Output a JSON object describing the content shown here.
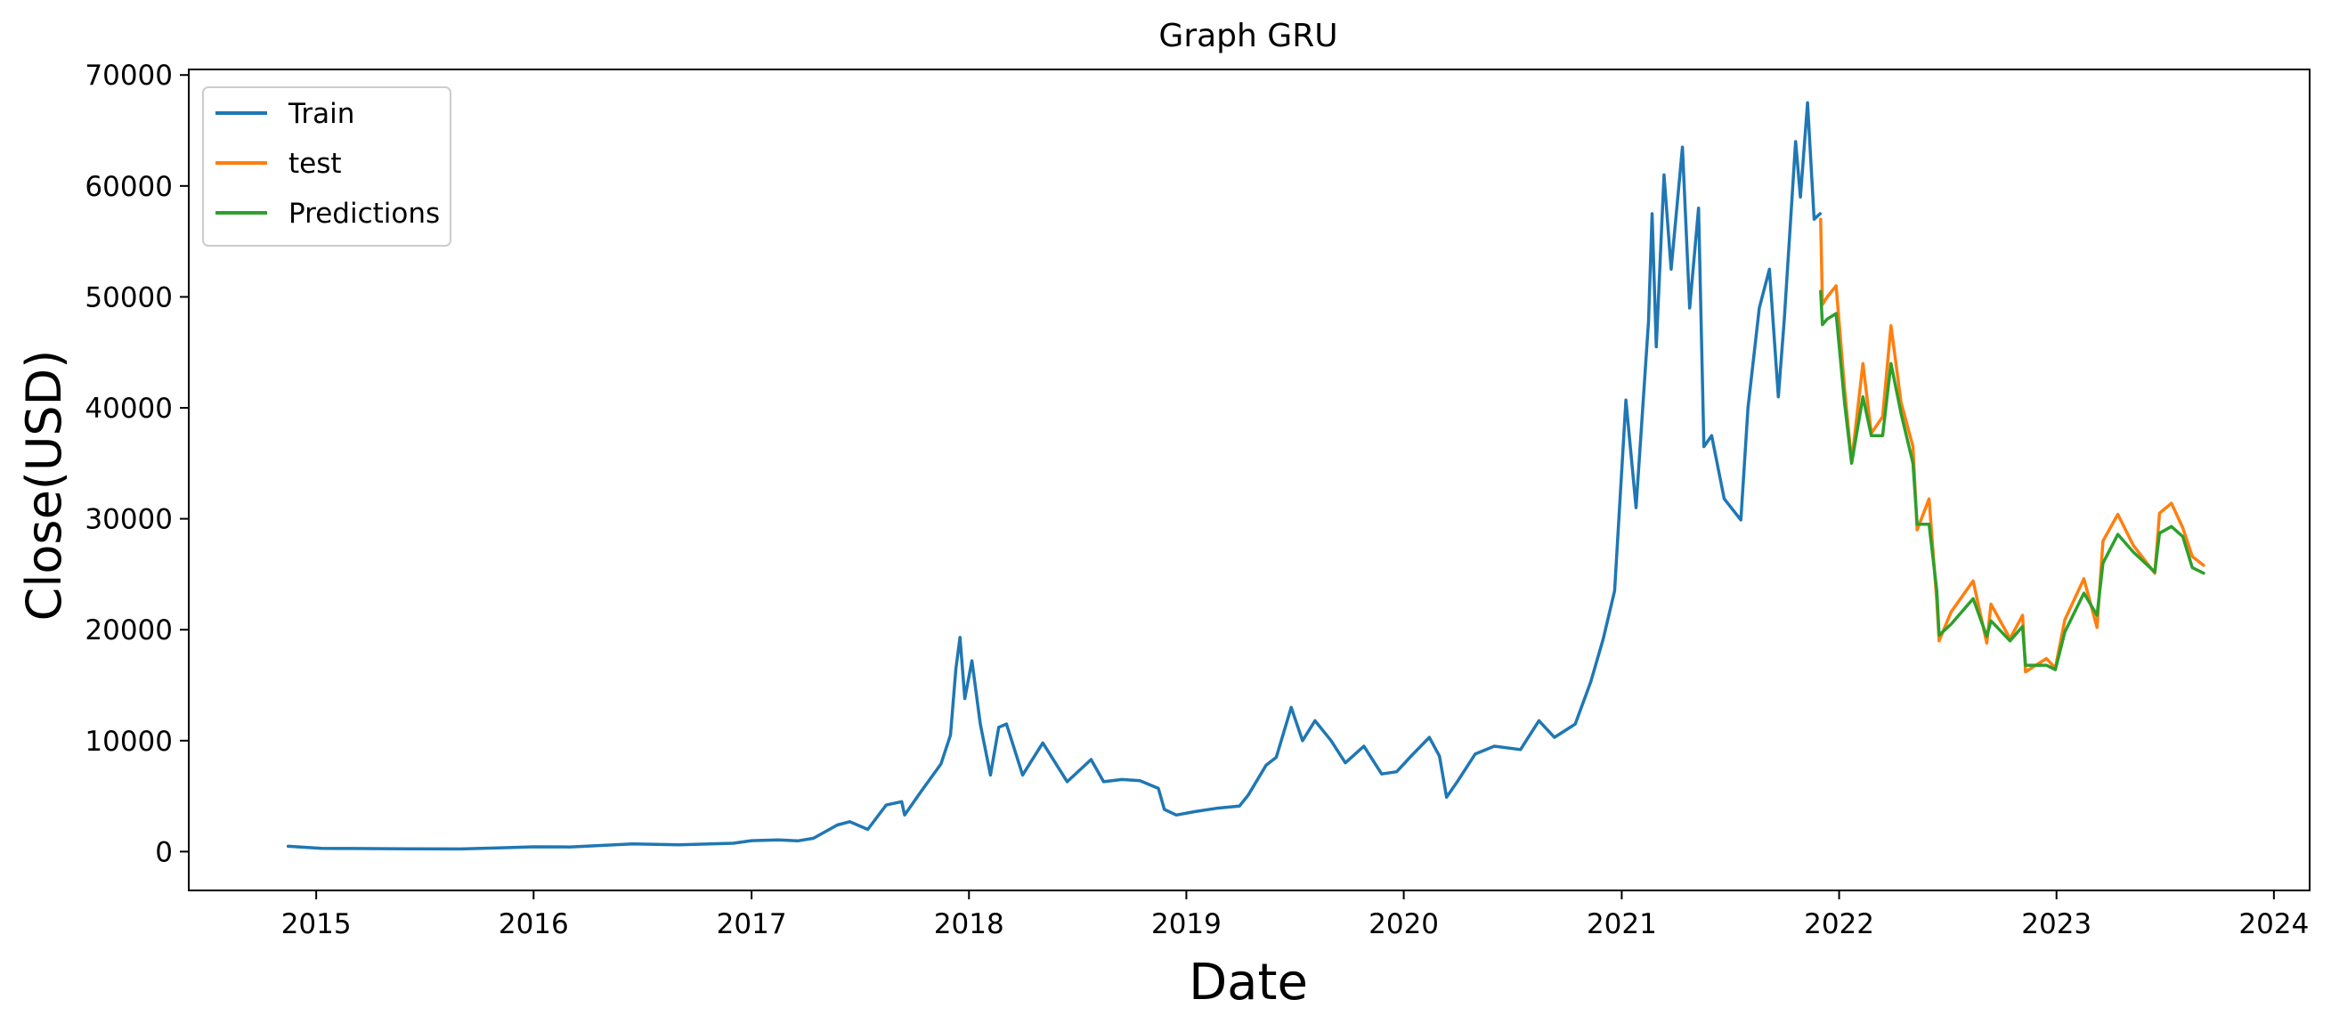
{
  "chart_data": {
    "type": "line",
    "title": "Graph GRU",
    "xlabel": "Date",
    "ylabel": "Close(USD)",
    "xlim": [
      "2014-06-01",
      "2024-03-01"
    ],
    "ylim": [
      -3500,
      70500
    ],
    "x_ticks": [
      "2015",
      "2016",
      "2017",
      "2018",
      "2019",
      "2020",
      "2021",
      "2022",
      "2023",
      "2024"
    ],
    "y_ticks": [
      0,
      10000,
      20000,
      30000,
      40000,
      50000,
      60000,
      70000
    ],
    "y_tick_labels": [
      "0",
      "10000",
      "20000",
      "30000",
      "40000",
      "50000",
      "60000",
      "70000"
    ],
    "grid": false,
    "legend_position": "top-left",
    "series": [
      {
        "name": "Train",
        "color": "#1f77b4",
        "points": [
          [
            "2014-11-15",
            480
          ],
          [
            "2015-01-10",
            290
          ],
          [
            "2015-03-01",
            280
          ],
          [
            "2015-06-01",
            250
          ],
          [
            "2015-09-01",
            240
          ],
          [
            "2015-11-15",
            350
          ],
          [
            "2016-01-01",
            430
          ],
          [
            "2016-03-01",
            415
          ],
          [
            "2016-06-15",
            700
          ],
          [
            "2016-09-01",
            610
          ],
          [
            "2016-12-01",
            750
          ],
          [
            "2017-01-01",
            990
          ],
          [
            "2017-02-15",
            1050
          ],
          [
            "2017-03-20",
            970
          ],
          [
            "2017-04-15",
            1200
          ],
          [
            "2017-05-25",
            2400
          ],
          [
            "2017-06-15",
            2700
          ],
          [
            "2017-07-15",
            2000
          ],
          [
            "2017-08-15",
            4200
          ],
          [
            "2017-09-10",
            4500
          ],
          [
            "2017-09-15",
            3300
          ],
          [
            "2017-10-15",
            5600
          ],
          [
            "2017-11-15",
            7900
          ],
          [
            "2017-12-01",
            10500
          ],
          [
            "2017-12-10",
            16500
          ],
          [
            "2017-12-17",
            19300
          ],
          [
            "2017-12-25",
            13800
          ],
          [
            "2018-01-06",
            17200
          ],
          [
            "2018-01-20",
            11500
          ],
          [
            "2018-02-06",
            6900
          ],
          [
            "2018-02-20",
            11200
          ],
          [
            "2018-03-05",
            11500
          ],
          [
            "2018-04-01",
            6900
          ],
          [
            "2018-05-05",
            9800
          ],
          [
            "2018-06-15",
            6300
          ],
          [
            "2018-07-25",
            8300
          ],
          [
            "2018-08-15",
            6300
          ],
          [
            "2018-09-15",
            6500
          ],
          [
            "2018-10-15",
            6400
          ],
          [
            "2018-11-15",
            5700
          ],
          [
            "2018-11-25",
            3800
          ],
          [
            "2018-12-15",
            3300
          ],
          [
            "2019-01-15",
            3600
          ],
          [
            "2019-02-20",
            3900
          ],
          [
            "2019-03-31",
            4100
          ],
          [
            "2019-04-15",
            5100
          ],
          [
            "2019-05-15",
            7800
          ],
          [
            "2019-06-01",
            8500
          ],
          [
            "2019-06-26",
            13000
          ],
          [
            "2019-07-15",
            10000
          ],
          [
            "2019-08-05",
            11800
          ],
          [
            "2019-09-01",
            10000
          ],
          [
            "2019-09-25",
            8000
          ],
          [
            "2019-10-26",
            9500
          ],
          [
            "2019-11-25",
            7000
          ],
          [
            "2019-12-20",
            7200
          ],
          [
            "2020-01-15",
            8700
          ],
          [
            "2020-02-13",
            10300
          ],
          [
            "2020-03-01",
            8600
          ],
          [
            "2020-03-13",
            4900
          ],
          [
            "2020-04-01",
            6400
          ],
          [
            "2020-04-30",
            8800
          ],
          [
            "2020-06-01",
            9500
          ],
          [
            "2020-07-15",
            9200
          ],
          [
            "2020-08-15",
            11800
          ],
          [
            "2020-09-10",
            10300
          ],
          [
            "2020-10-15",
            11500
          ],
          [
            "2020-11-10",
            15300
          ],
          [
            "2020-12-01",
            19200
          ],
          [
            "2020-12-20",
            23500
          ],
          [
            "2021-01-08",
            40700
          ],
          [
            "2021-01-25",
            31000
          ],
          [
            "2021-02-15",
            47800
          ],
          [
            "2021-02-21",
            57500
          ],
          [
            "2021-02-28",
            45500
          ],
          [
            "2021-03-13",
            61000
          ],
          [
            "2021-03-25",
            52500
          ],
          [
            "2021-04-13",
            63500
          ],
          [
            "2021-04-25",
            49000
          ],
          [
            "2021-05-10",
            58000
          ],
          [
            "2021-05-19",
            36500
          ],
          [
            "2021-06-01",
            37500
          ],
          [
            "2021-06-22",
            31800
          ],
          [
            "2021-07-20",
            29900
          ],
          [
            "2021-08-01",
            40000
          ],
          [
            "2021-08-20",
            49000
          ],
          [
            "2021-09-06",
            52500
          ],
          [
            "2021-09-21",
            41000
          ],
          [
            "2021-10-01",
            48000
          ],
          [
            "2021-10-20",
            64000
          ],
          [
            "2021-10-28",
            59000
          ],
          [
            "2021-11-09",
            67500
          ],
          [
            "2021-11-20",
            57000
          ],
          [
            "2021-11-30",
            57500
          ]
        ]
      },
      {
        "name": "test",
        "color": "#ff7f0e",
        "points": [
          [
            "2021-12-01",
            57000
          ],
          [
            "2021-12-04",
            49300
          ],
          [
            "2021-12-12",
            50000
          ],
          [
            "2021-12-27",
            51000
          ],
          [
            "2022-01-10",
            41800
          ],
          [
            "2022-01-22",
            35100
          ],
          [
            "2022-02-10",
            44000
          ],
          [
            "2022-02-24",
            37700
          ],
          [
            "2022-03-15",
            39200
          ],
          [
            "2022-03-29",
            47400
          ],
          [
            "2022-04-15",
            40500
          ],
          [
            "2022-05-05",
            36500
          ],
          [
            "2022-05-12",
            29000
          ],
          [
            "2022-06-01",
            31800
          ],
          [
            "2022-06-14",
            22500
          ],
          [
            "2022-06-18",
            19000
          ],
          [
            "2022-07-08",
            21600
          ],
          [
            "2022-08-14",
            24400
          ],
          [
            "2022-09-06",
            18800
          ],
          [
            "2022-09-13",
            22300
          ],
          [
            "2022-10-15",
            19200
          ],
          [
            "2022-11-05",
            21300
          ],
          [
            "2022-11-10",
            16200
          ],
          [
            "2022-12-15",
            17400
          ],
          [
            "2022-12-30",
            16550
          ],
          [
            "2023-01-15",
            20900
          ],
          [
            "2023-02-16",
            24600
          ],
          [
            "2023-03-10",
            20200
          ],
          [
            "2023-03-20",
            28000
          ],
          [
            "2023-04-14",
            30400
          ],
          [
            "2023-05-10",
            27600
          ],
          [
            "2023-06-15",
            25100
          ],
          [
            "2023-06-23",
            30500
          ],
          [
            "2023-07-13",
            31400
          ],
          [
            "2023-08-01",
            29200
          ],
          [
            "2023-08-17",
            26600
          ],
          [
            "2023-09-05",
            25800
          ]
        ]
      },
      {
        "name": "Predictions",
        "color": "#2ca02c",
        "points": [
          [
            "2021-12-01",
            50500
          ],
          [
            "2021-12-04",
            47500
          ],
          [
            "2021-12-12",
            48000
          ],
          [
            "2021-12-27",
            48500
          ],
          [
            "2022-01-10",
            40500
          ],
          [
            "2022-01-22",
            35000
          ],
          [
            "2022-02-10",
            41000
          ],
          [
            "2022-02-24",
            37500
          ],
          [
            "2022-03-15",
            37500
          ],
          [
            "2022-03-29",
            44000
          ],
          [
            "2022-04-15",
            39500
          ],
          [
            "2022-05-05",
            35000
          ],
          [
            "2022-05-12",
            29500
          ],
          [
            "2022-06-01",
            29500
          ],
          [
            "2022-06-14",
            23500
          ],
          [
            "2022-06-18",
            19500
          ],
          [
            "2022-07-08",
            20500
          ],
          [
            "2022-08-14",
            22800
          ],
          [
            "2022-09-06",
            19400
          ],
          [
            "2022-09-13",
            20800
          ],
          [
            "2022-10-15",
            19000
          ],
          [
            "2022-11-05",
            20300
          ],
          [
            "2022-11-10",
            16800
          ],
          [
            "2022-12-15",
            16800
          ],
          [
            "2022-12-30",
            16400
          ],
          [
            "2023-01-15",
            19800
          ],
          [
            "2023-02-16",
            23300
          ],
          [
            "2023-03-10",
            21300
          ],
          [
            "2023-03-20",
            26000
          ],
          [
            "2023-04-14",
            28600
          ],
          [
            "2023-05-10",
            27000
          ],
          [
            "2023-06-15",
            25200
          ],
          [
            "2023-06-23",
            28700
          ],
          [
            "2023-07-13",
            29300
          ],
          [
            "2023-08-01",
            28400
          ],
          [
            "2023-08-17",
            25600
          ],
          [
            "2023-09-05",
            25100
          ]
        ]
      }
    ]
  }
}
